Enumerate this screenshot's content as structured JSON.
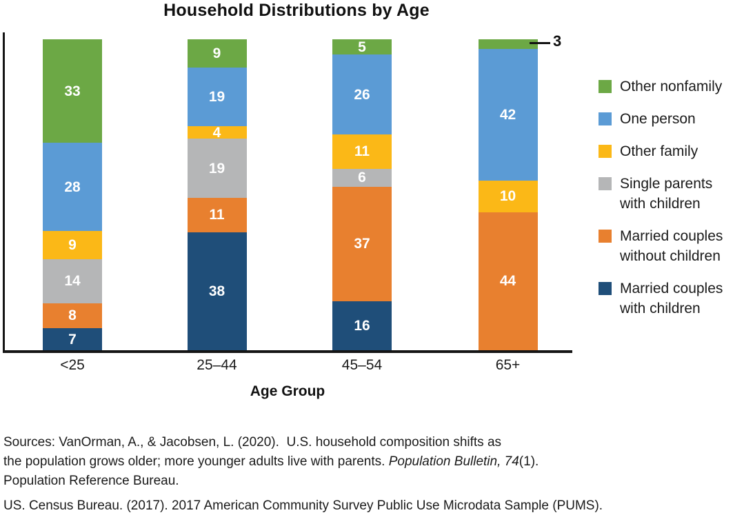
{
  "chart_data": {
    "type": "bar",
    "stacked": true,
    "title": "Household Distributions by Age",
    "xlabel": "Age Group",
    "ylim": [
      0,
      100
    ],
    "grid": false,
    "legend_position": "right",
    "categories": [
      "<25",
      "25–44",
      "45–54",
      "65+"
    ],
    "series": [
      {
        "name": "Married couples with children",
        "color": "#1F4E79",
        "values": [
          7,
          38,
          16,
          0
        ]
      },
      {
        "name": "Married couples without children",
        "color": "#E8802F",
        "values": [
          8,
          11,
          37,
          44
        ]
      },
      {
        "name": "Single parents with children",
        "color": "#B5B6B7",
        "values": [
          14,
          19,
          6,
          0
        ]
      },
      {
        "name": "Other family",
        "color": "#FBB817",
        "values": [
          9,
          4,
          11,
          10
        ]
      },
      {
        "name": "One person",
        "color": "#5B9BD5",
        "values": [
          28,
          19,
          26,
          42
        ]
      },
      {
        "name": "Other nonfamily",
        "color": "#6CA845",
        "values": [
          33,
          9,
          5,
          3
        ]
      }
    ],
    "callout": {
      "category_index": 3,
      "series_name": "Other nonfamily",
      "text": "3"
    }
  },
  "legend": {
    "items": [
      {
        "label": "Other nonfamily",
        "color": "#6CA845"
      },
      {
        "label": "One person",
        "color": "#5B9BD5"
      },
      {
        "label": "Other family",
        "color": "#FBB817"
      },
      {
        "label": "Single parents\nwith children",
        "color": "#B5B6B7"
      },
      {
        "label": "Married couples\nwithout children",
        "color": "#E8802F"
      },
      {
        "label": "Married couples\nwith children",
        "color": "#1F4E79"
      }
    ]
  },
  "footer": {
    "sources": {
      "line1": "Sources: VanOrman, A., & Jacobsen, L. (2020).  U.S. household composition shifts as",
      "line2_pre": "the population grows older; more younger adults live with parents. ",
      "line2_italic": "Population Bulletin, 74",
      "line2_post": "(1).",
      "line3": "Population Reference Bureau."
    },
    "census": "US. Census Bureau. (2017). 2017 American Community Survey Public Use Microdata Sample (PUMS)."
  },
  "colors": {
    "axis": "#151515",
    "bar_label_text": "#FFFFFF",
    "text": "#1a1a1a"
  }
}
